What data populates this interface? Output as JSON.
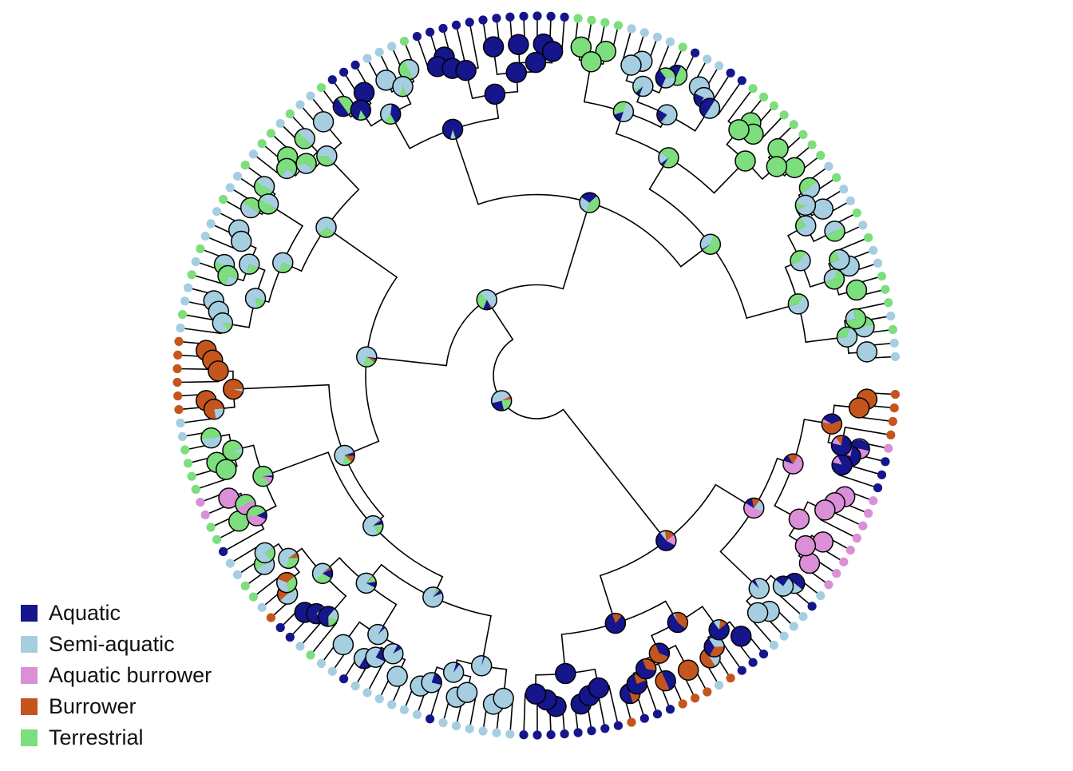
{
  "figure": {
    "kind": "circular-phylogeny-with-ancestral-state-pies",
    "tip_states": "SSGSGGGSSGSGSSGSGGGGGGGGNNSSNGSSSSGGGGNNNNNNNNNNNNGSSSNNNGSSGSGGSGSSGSSSGSGSSGSRRRRRRSSGGGGPPGGNSSGGSRNNSGSSNSSSSSSNSSSSSSNNNNNNNNRNNNRRRSRNNNSSSSNSPPPPPPPPNNNPRRRR",
    "forced_splits": {
      "0-164": 122,
      "0-122": 58,
      "122-164": 142,
      "58-122": 79,
      "79-122": 86,
      "86-122": 96,
      "96-122": 113,
      "0-58": 38,
      "0-38": 16,
      "16-38": 24,
      "24-38": 34,
      "38-58": 50,
      "142-164": 148,
      "148-164": 156,
      "122-142": 130
    },
    "seed": 7,
    "edge_color": "#000000",
    "pie_outline_color": "#000000"
  },
  "legend": {
    "items": [
      {
        "code": "N",
        "label": "Aquatic",
        "color": "#15158C"
      },
      {
        "code": "S",
        "label": "Semi-aquatic",
        "color": "#A6CEE1"
      },
      {
        "code": "P",
        "label": "Aquatic burrower",
        "color": "#DA8FD6"
      },
      {
        "code": "R",
        "label": "Burrower",
        "color": "#C4561D"
      },
      {
        "code": "G",
        "label": "Terrestrial",
        "color": "#7DDE7D"
      }
    ]
  }
}
